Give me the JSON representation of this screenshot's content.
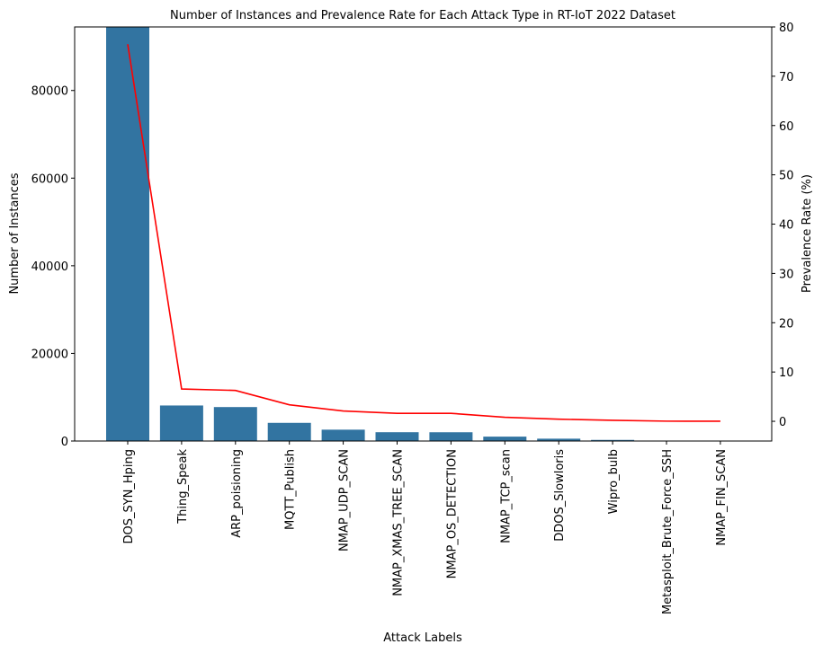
{
  "chart_data": {
    "type": "bar",
    "title": "Number of Instances and Prevalence Rate for Each Attack Type in RT-IoT 2022 Dataset",
    "xlabel": "Attack Labels",
    "ylabel": "Number of Instances",
    "y2label": "Prevalence Rate (%)",
    "categories": [
      "DOS_SYN_Hping",
      "Thing_Speak",
      "ARP_poisioning",
      "MQTT_Publish",
      "NMAP_UDP_SCAN",
      "NMAP_XMAS_TREE_SCAN",
      "NMAP_OS_DETECTION",
      "NMAP_TCP_scan",
      "DDOS_Slowloris",
      "Wipro_bulb",
      "Metasploit_Brute_Force_SSH",
      "NMAP_FIN_SCAN"
    ],
    "ylim": [
      0,
      94500
    ],
    "y2lim": [
      -4,
      80
    ],
    "yticks": [
      0,
      20000,
      40000,
      60000,
      80000
    ],
    "y2ticks": [
      0,
      10,
      20,
      30,
      40,
      50,
      60,
      70,
      80
    ],
    "series": [
      {
        "axis": "left",
        "kind": "bar",
        "color": "#3274a1",
        "values": [
          94659,
          8108,
          7750,
          4146,
          2590,
          2010,
          2000,
          1002,
          534,
          253,
          37,
          28
        ]
      },
      {
        "axis": "right",
        "kind": "line",
        "color": "#ff0000",
        "values": [
          76.5,
          6.55,
          6.26,
          3.35,
          2.09,
          1.62,
          1.62,
          0.81,
          0.43,
          0.2,
          0.03,
          0.02
        ]
      }
    ],
    "grid": false
  }
}
